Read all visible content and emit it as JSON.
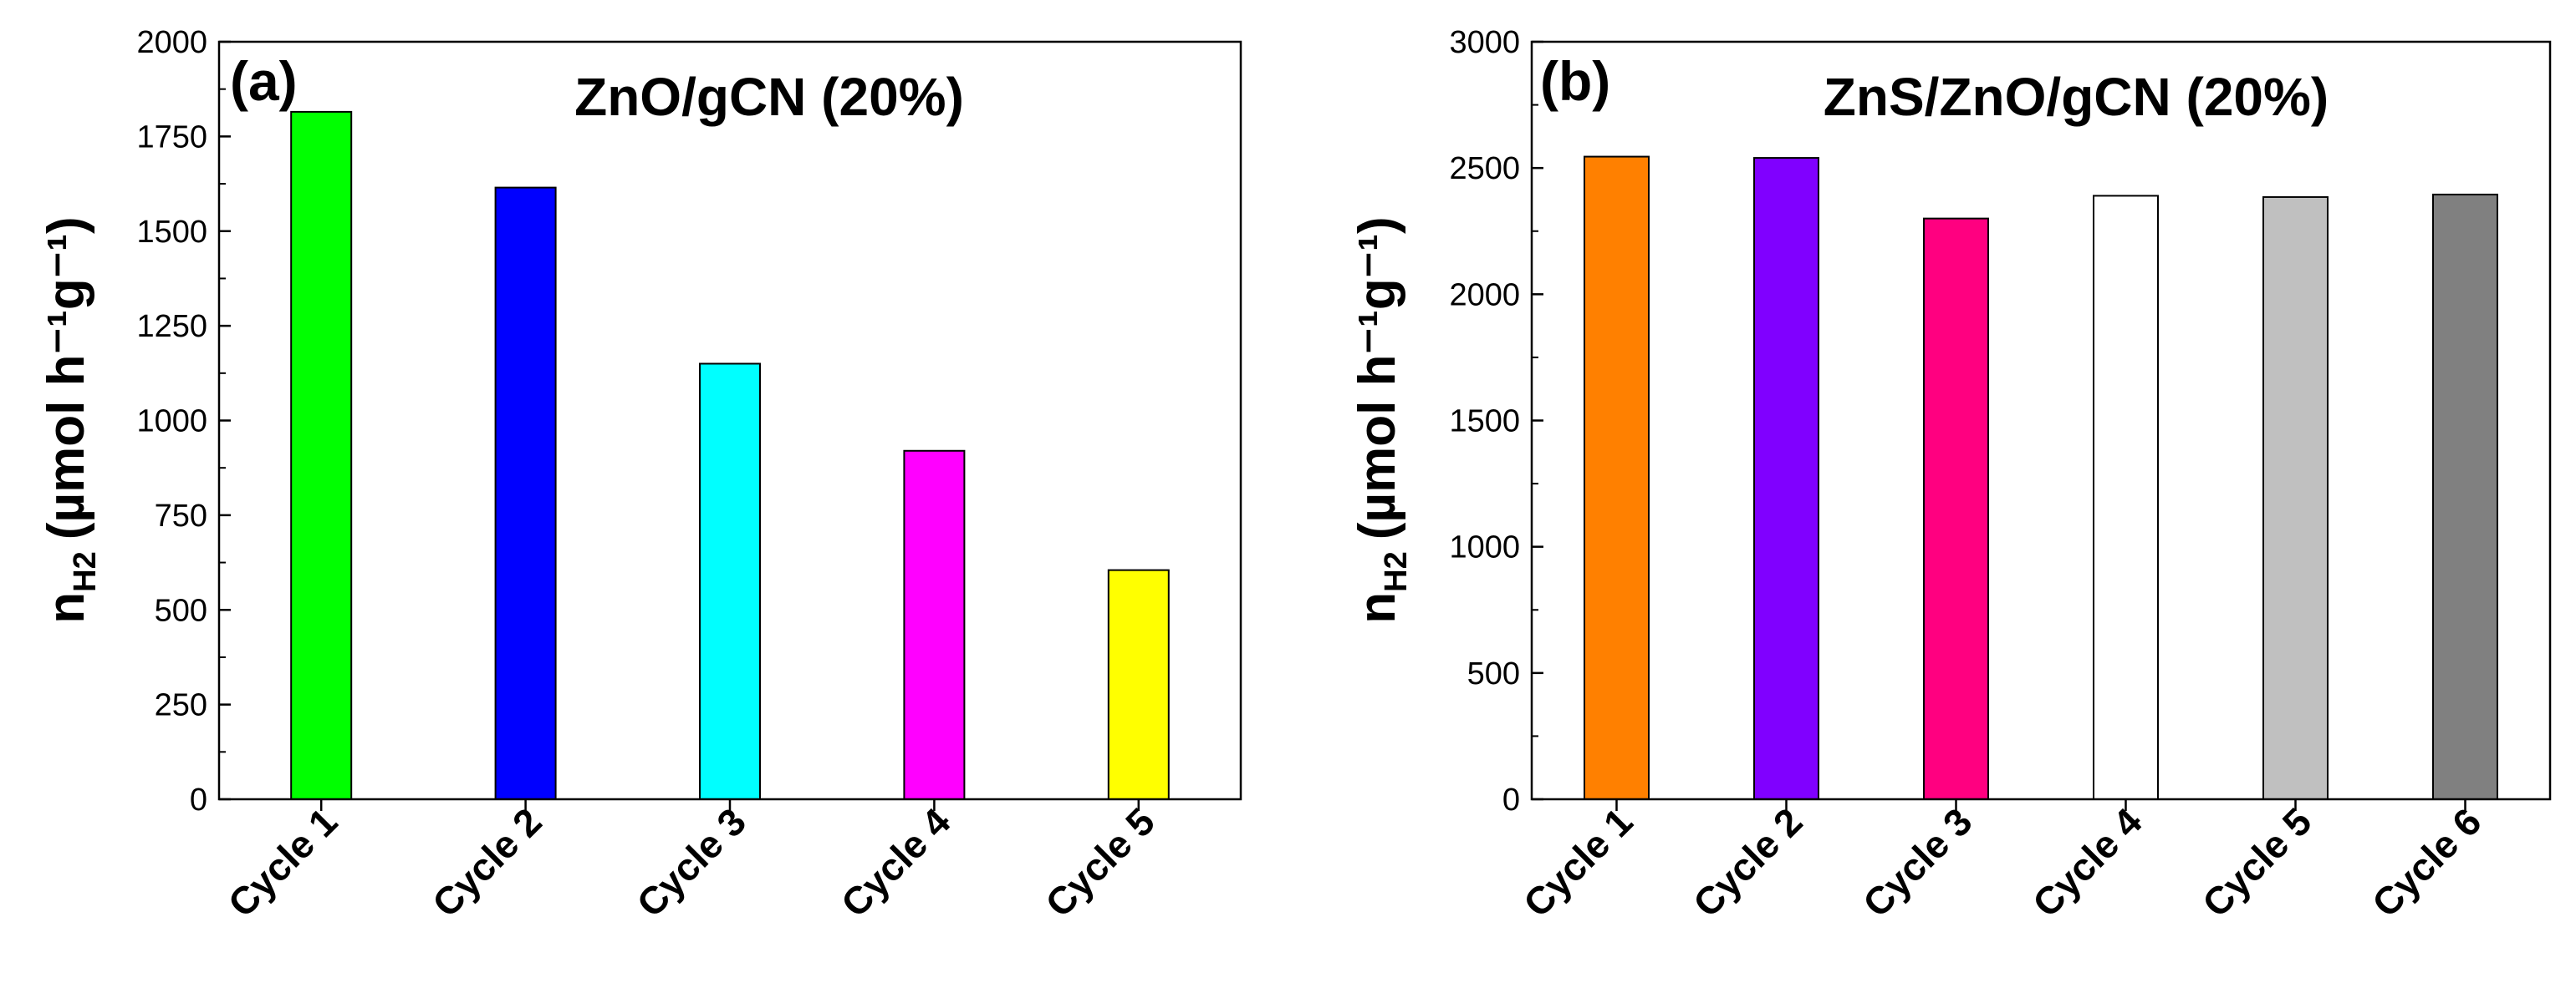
{
  "chart_data": [
    {
      "type": "bar",
      "panel_label": "(a)",
      "title": "ZnO/gCN (20%)",
      "ylabel": "n",
      "ylabel_sub": "H2",
      "ylabel_unit": "(µmol h⁻¹g⁻¹)",
      "xlabel": "",
      "categories": [
        "Cycle 1",
        "Cycle 2",
        "Cycle 3",
        "Cycle 4",
        "Cycle 5"
      ],
      "values": [
        1815,
        1615,
        1150,
        920,
        605
      ],
      "colors": [
        "#00ff00",
        "#0000ff",
        "#00ffff",
        "#ff00ff",
        "#ffff00"
      ],
      "ylim": [
        0,
        2000
      ],
      "yticks": [
        0,
        250,
        500,
        750,
        1000,
        1250,
        1500,
        1750,
        2000
      ],
      "ytick_labels": [
        "0",
        "250",
        "500",
        "750",
        "1000",
        "1250",
        "1500",
        "1750",
        "2000"
      ],
      "grid": false
    },
    {
      "type": "bar",
      "panel_label": "(b)",
      "title": "ZnS/ZnO/gCN (20%)",
      "ylabel": "n",
      "ylabel_sub": "H2",
      "ylabel_unit": "(µmol h⁻¹g⁻¹)",
      "xlabel": "",
      "categories": [
        "Cycle 1",
        "Cycle 2",
        "Cycle 3",
        "Cycle 4",
        "Cycle 5",
        "Cycle 6"
      ],
      "values": [
        2545,
        2540,
        2300,
        2390,
        2385,
        2395
      ],
      "colors": [
        "#ff8000",
        "#8000ff",
        "#ff0080",
        "#ffffff",
        "#c0c0c0",
        "#808080"
      ],
      "ylim": [
        0,
        3000
      ],
      "yticks": [
        0,
        500,
        1000,
        1500,
        2000,
        2500,
        3000
      ],
      "ytick_labels": [
        "0",
        "500",
        "1000",
        "1500",
        "2000",
        "2500",
        "3000"
      ],
      "grid": false
    }
  ]
}
